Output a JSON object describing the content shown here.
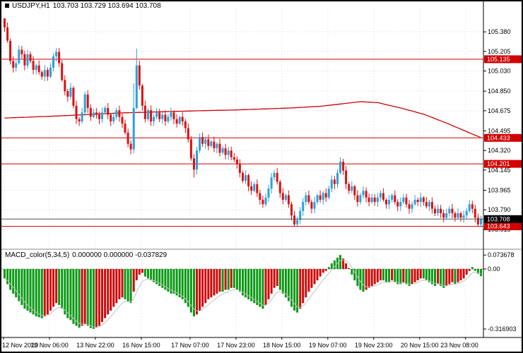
{
  "header": {
    "symbol": "USDJPY,H1",
    "ohlc": "103.703 103.729 103.694 103.708"
  },
  "macd_header": {
    "name": "MACD_color(5,34,5)",
    "values": "0.000000 0.000000 -0.037829"
  },
  "colors": {
    "up": "#2aa0dd",
    "down": "#dd1010",
    "level_line": "#d20000",
    "ma": "#cc0000",
    "macd_up": "#0a9a14",
    "macd_down": "#cf0a0a",
    "signal": "#c0c0c0",
    "badge_red": "#d20000",
    "badge_black": "#000000",
    "grid": "#dcdcdc",
    "zero_line": "#a8a8a8",
    "bid_line": "#555555",
    "axis_text": "#000000"
  },
  "chart_data": [
    {
      "type": "candlestick",
      "symbol": "USDJPY",
      "timeframe": "H1",
      "first_open": 105.5,
      "closes": [
        105.42,
        105.3,
        105.12,
        105.06,
        105.1,
        105.22,
        105.18,
        105.08,
        105.18,
        105.12,
        105.04,
        105.08,
        105.02,
        104.98,
        105.04,
        104.98,
        105.06,
        105.16,
        105.2,
        105.1,
        104.95,
        104.85,
        104.8,
        104.88,
        104.72,
        104.6,
        104.58,
        104.66,
        104.82,
        104.7,
        104.62,
        104.66,
        104.64,
        104.6,
        104.66,
        104.7,
        104.64,
        104.58,
        104.62,
        104.68,
        104.62,
        104.56,
        104.48,
        104.38,
        104.33,
        104.7,
        105.08,
        104.9,
        104.72,
        104.6,
        104.68,
        104.58,
        104.62,
        104.66,
        104.6,
        104.64,
        104.58,
        104.62,
        104.66,
        104.6,
        104.56,
        104.62,
        104.58,
        104.52,
        104.42,
        104.25,
        104.15,
        104.32,
        104.44,
        104.38,
        104.42,
        104.36,
        104.4,
        104.34,
        104.38,
        104.3,
        104.34,
        104.28,
        104.32,
        104.26,
        104.24,
        104.2,
        104.12,
        104.05,
        104.1,
        104.0,
        103.96,
        104.02,
        103.94,
        103.88,
        103.84,
        103.9,
        103.98,
        104.08,
        104.12,
        104.04,
        103.94,
        103.88,
        103.92,
        103.84,
        103.74,
        103.66,
        103.7,
        103.78,
        103.86,
        103.92,
        103.86,
        103.8,
        103.86,
        103.92,
        103.88,
        103.94,
        103.9,
        103.98,
        104.06,
        104.02,
        104.12,
        104.22,
        104.14,
        104.02,
        103.96,
        104.0,
        103.92,
        103.86,
        103.92,
        103.96,
        103.9,
        103.86,
        103.9,
        103.86,
        103.9,
        103.94,
        103.88,
        103.84,
        103.88,
        103.92,
        103.86,
        103.82,
        103.86,
        103.9,
        103.84,
        103.8,
        103.84,
        103.88,
        103.86,
        103.9,
        103.86,
        103.82,
        103.86,
        103.8,
        103.76,
        103.8,
        103.76,
        103.72,
        103.76,
        103.8,
        103.76,
        103.72,
        103.76,
        103.72,
        103.74,
        103.78,
        103.84,
        103.8,
        103.72,
        103.66,
        103.708
      ],
      "wick_overrides": {
        "high": {
          "0": 105.48,
          "45": 104.92,
          "46": 105.23,
          "117": 104.26
        },
        "low": {
          "66": 104.08,
          "101": 103.645,
          "165": 103.643
        }
      },
      "ma_red": {
        "bars": [
          0,
          20,
          40,
          60,
          80,
          100,
          110,
          118,
          124,
          130,
          138,
          146,
          154,
          160,
          166
        ],
        "prices": [
          104.61,
          104.63,
          104.655,
          104.67,
          104.682,
          104.7,
          104.715,
          104.738,
          104.756,
          104.748,
          104.7,
          104.645,
          104.565,
          104.5,
          104.435
        ]
      },
      "levels": [
        {
          "label": "105.135",
          "value": 105.135
        },
        {
          "label": "104.433",
          "value": 104.433
        },
        {
          "label": "104.201",
          "value": 104.201
        },
        {
          "label": "103.643",
          "value": 103.643
        }
      ],
      "current_price": {
        "label": "103.708",
        "value": 103.708
      },
      "y_ticks": [
        {
          "label": "105.380",
          "value": 105.38
        },
        {
          "label": "105.205",
          "value": 105.205
        },
        {
          "label": "105.030",
          "value": 105.03
        },
        {
          "label": "104.850",
          "value": 104.85
        },
        {
          "label": "104.675",
          "value": 104.675
        },
        {
          "label": "104.495",
          "value": 104.495
        },
        {
          "label": "104.320",
          "value": 104.32
        },
        {
          "label": "104.145",
          "value": 104.145
        },
        {
          "label": "103.965",
          "value": 103.965
        },
        {
          "label": "103.790",
          "value": 103.79
        },
        {
          "label": "103.615",
          "value": 103.615
        }
      ],
      "time_labels": [
        {
          "label": "12 Nov 2020",
          "bar": 0
        },
        {
          "label": "13 Nov 06:00",
          "bar": 16
        },
        {
          "label": "13 Nov 22:00",
          "bar": 32
        },
        {
          "label": "16 Nov 15:00",
          "bar": 48
        },
        {
          "label": "17 Nov 07:00",
          "bar": 65
        },
        {
          "label": "17 Nov 23:00",
          "bar": 81
        },
        {
          "label": "18 Nov 15:00",
          "bar": 97
        },
        {
          "label": "19 Nov 07:00",
          "bar": 113
        },
        {
          "label": "19 Nov 23:00",
          "bar": 129
        },
        {
          "label": "20 Nov 15:00",
          "bar": 145
        },
        {
          "label": "23 Nov 08:00",
          "bar": 161
        }
      ],
      "ylim": [
        103.44,
        105.59
      ]
    },
    {
      "type": "bar",
      "name": "MACD_color(5,34,5)",
      "values": [
        -0.05,
        -0.08,
        -0.11,
        -0.13,
        -0.15,
        -0.17,
        -0.19,
        -0.21,
        -0.22,
        -0.23,
        -0.24,
        -0.25,
        -0.255,
        -0.26,
        -0.25,
        -0.24,
        -0.22,
        -0.2,
        -0.18,
        -0.19,
        -0.21,
        -0.24,
        -0.26,
        -0.27,
        -0.29,
        -0.3,
        -0.31,
        -0.3,
        -0.29,
        -0.3,
        -0.312,
        -0.316,
        -0.31,
        -0.3,
        -0.28,
        -0.26,
        -0.24,
        -0.22,
        -0.2,
        -0.18,
        -0.16,
        -0.15,
        -0.16,
        -0.17,
        -0.18,
        -0.12,
        -0.06,
        -0.03,
        -0.02,
        -0.04,
        -0.05,
        -0.06,
        -0.07,
        -0.08,
        -0.09,
        -0.1,
        -0.11,
        -0.12,
        -0.13,
        -0.13,
        -0.14,
        -0.15,
        -0.16,
        -0.18,
        -0.2,
        -0.23,
        -0.25,
        -0.24,
        -0.22,
        -0.2,
        -0.18,
        -0.16,
        -0.15,
        -0.14,
        -0.13,
        -0.12,
        -0.12,
        -0.11,
        -0.11,
        -0.1,
        -0.1,
        -0.11,
        -0.12,
        -0.14,
        -0.15,
        -0.16,
        -0.17,
        -0.18,
        -0.19,
        -0.2,
        -0.21,
        -0.19,
        -0.16,
        -0.13,
        -0.1,
        -0.09,
        -0.11,
        -0.13,
        -0.15,
        -0.17,
        -0.2,
        -0.22,
        -0.23,
        -0.21,
        -0.18,
        -0.15,
        -0.12,
        -0.1,
        -0.08,
        -0.06,
        -0.04,
        -0.02,
        -0.01,
        0.01,
        0.03,
        0.045,
        0.06,
        0.0737,
        0.055,
        0.03,
        0.005,
        -0.03,
        -0.06,
        -0.09,
        -0.11,
        -0.12,
        -0.11,
        -0.1,
        -0.09,
        -0.08,
        -0.07,
        -0.06,
        -0.06,
        -0.07,
        -0.07,
        -0.06,
        -0.07,
        -0.08,
        -0.08,
        -0.07,
        -0.08,
        -0.09,
        -0.08,
        -0.07,
        -0.06,
        -0.05,
        -0.05,
        -0.06,
        -0.07,
        -0.08,
        -0.09,
        -0.08,
        -0.09,
        -0.1,
        -0.09,
        -0.08,
        -0.07,
        -0.08,
        -0.07,
        -0.06,
        -0.05,
        -0.03,
        -0.01,
        0.01,
        -0.01,
        -0.025,
        -0.037829
      ],
      "y_ticks": [
        {
          "label": "0.073678",
          "value": 0.073678
        },
        {
          "label": "0.00",
          "value": 0
        },
        {
          "label": "-0.316903",
          "value": -0.316903
        }
      ],
      "ylim": [
        -0.362,
        0.104
      ]
    }
  ]
}
